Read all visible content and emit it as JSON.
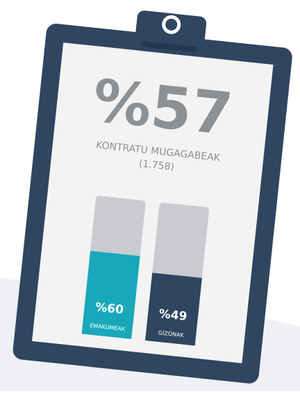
{
  "chart_data": {
    "type": "bar",
    "headline": "%57",
    "title": "KONTRATU MUGAGABEAK",
    "subtitle": "(1.758)",
    "categories": [
      "EMAKUMEAK",
      "GIZONAK"
    ],
    "values": [
      60,
      49
    ],
    "value_labels": [
      "%60",
      "%49"
    ],
    "colors": [
      "#17a9b9",
      "#2f4560"
    ],
    "track_color": "#c9cbd0",
    "ylim": [
      0,
      100
    ]
  }
}
